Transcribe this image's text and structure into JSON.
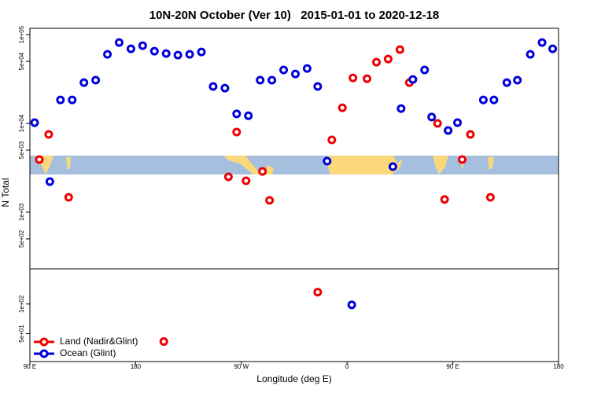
{
  "chart_data": [
    {
      "type": "scatter",
      "title": "10N-20N October (Ver 10)   2015-01-01 to 2020-12-18",
      "ylabel": "N Total",
      "log": true,
      "xlim": [
        90,
        540
      ],
      "ylim": [
        230,
        118000
      ],
      "yticks": [
        {
          "value": 100000,
          "label": "1e+05"
        },
        {
          "value": 50000,
          "label": "5e+04"
        },
        {
          "value": 10000,
          "label": "1e+04"
        },
        {
          "value": 5000,
          "label": "5e+03"
        },
        {
          "value": 1000,
          "label": "1e+03"
        },
        {
          "value": 500,
          "label": "5e+02"
        }
      ],
      "series": [
        {
          "color": "#ee0000",
          "x": [
            98,
            106,
            123,
            259,
            266,
            274,
            288,
            294,
            347,
            356,
            365,
            377,
            385,
            395,
            405,
            413,
            437,
            443,
            458,
            465,
            482
          ],
          "values": [
            3920,
            7520,
            1470,
            2500,
            8000,
            2260,
            2880,
            1360,
            6520,
            15000,
            32600,
            31900,
            49000,
            53200,
            67900,
            28800,
            10000,
            1390,
            3920,
            7520,
            1470
          ]
        },
        {
          "color": "#0000dd",
          "x": [
            94,
            107,
            116,
            126,
            136,
            146,
            156,
            166,
            176,
            186,
            196,
            206,
            216,
            226,
            236,
            246,
            256,
            266,
            276,
            286,
            296,
            306,
            316,
            326,
            335,
            343,
            399,
            406,
            416,
            426,
            432,
            446,
            454,
            476,
            485,
            496,
            505,
            516,
            526,
            535
          ],
          "values": [
            10200,
            2210,
            18400,
            18400,
            28800,
            30700,
            60100,
            81600,
            69300,
            75200,
            65200,
            61300,
            58900,
            60100,
            63900,
            26100,
            25000,
            12800,
            12200,
            30700,
            30700,
            40000,
            36100,
            41600,
            26100,
            3760,
            3260,
            14700,
            31300,
            40000,
            11800,
            8320,
            10200,
            18400,
            18400,
            28800,
            30700,
            60100,
            81600,
            69300
          ]
        }
      ]
    },
    {
      "type": "scatter",
      "xlabel": "Longitude (deg E)",
      "log": true,
      "xlim": [
        90,
        540
      ],
      "ylim": [
        26,
        228
      ],
      "xticks": [
        {
          "value": 90,
          "label": "90 E"
        },
        {
          "value": 180,
          "label": "180"
        },
        {
          "value": 270,
          "label": "90 W"
        },
        {
          "value": 360,
          "label": "0"
        },
        {
          "value": 450,
          "label": "90 E"
        },
        {
          "value": 540,
          "label": "180"
        }
      ],
      "yticks": [
        {
          "value": 100,
          "label": "1e+02"
        },
        {
          "value": 50,
          "label": "5e+01"
        }
      ],
      "legend": "lower left",
      "series": [
        {
          "name": "Land (Nadir&Glint)",
          "color": "#ee0000",
          "x": [
            335,
            204
          ],
          "values": [
            132,
            41.6
          ]
        },
        {
          "name": "Ocean (Glint)",
          "color": "#0000dd",
          "x": [
            364
          ],
          "values": [
            98
          ]
        }
      ]
    }
  ]
}
